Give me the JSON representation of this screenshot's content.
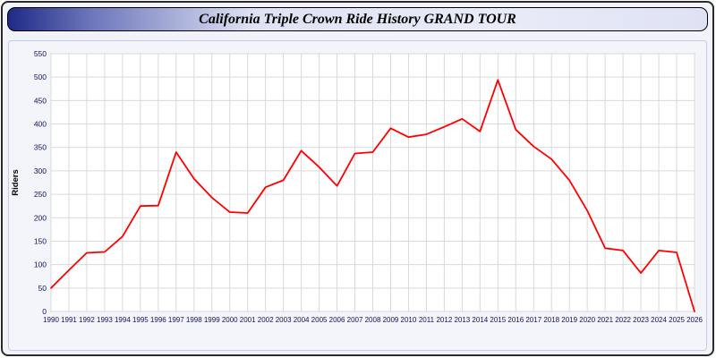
{
  "page": {
    "title": "California Triple Crown Ride History GRAND TOUR"
  },
  "colors": {
    "line": "#ff0000",
    "grid": "#d9d9d9",
    "plot_background": "#ffffff",
    "plot_border": "#8a8a8a",
    "tick_text": "#101060",
    "title_bar_dark": "#1e2a87",
    "title_bar_light": "#e9ebf8"
  },
  "chart_data": {
    "type": "line",
    "title": "California Triple Crown Ride History GRAND TOUR",
    "xlabel": "",
    "ylabel": "Riders",
    "ylim": [
      0,
      550
    ],
    "ytick_step": 50,
    "grid": true,
    "legend": "none",
    "line_color": "#ff0000",
    "x": [
      1990,
      1991,
      1992,
      1993,
      1994,
      1995,
      1996,
      1997,
      1998,
      1999,
      2000,
      2001,
      2002,
      2003,
      2004,
      2005,
      2006,
      2007,
      2008,
      2009,
      2010,
      2011,
      2012,
      2013,
      2014,
      2015,
      2016,
      2017,
      2018,
      2019,
      2020,
      2021,
      2022,
      2023,
      2024,
      2025,
      2026
    ],
    "values": [
      50,
      88,
      125,
      127,
      160,
      225,
      226,
      340,
      283,
      243,
      212,
      210,
      265,
      280,
      343,
      308,
      268,
      337,
      340,
      391,
      372,
      378,
      394,
      411,
      384,
      494,
      388,
      352,
      325,
      280,
      215,
      135,
      130,
      82,
      130,
      126,
      0
    ]
  }
}
